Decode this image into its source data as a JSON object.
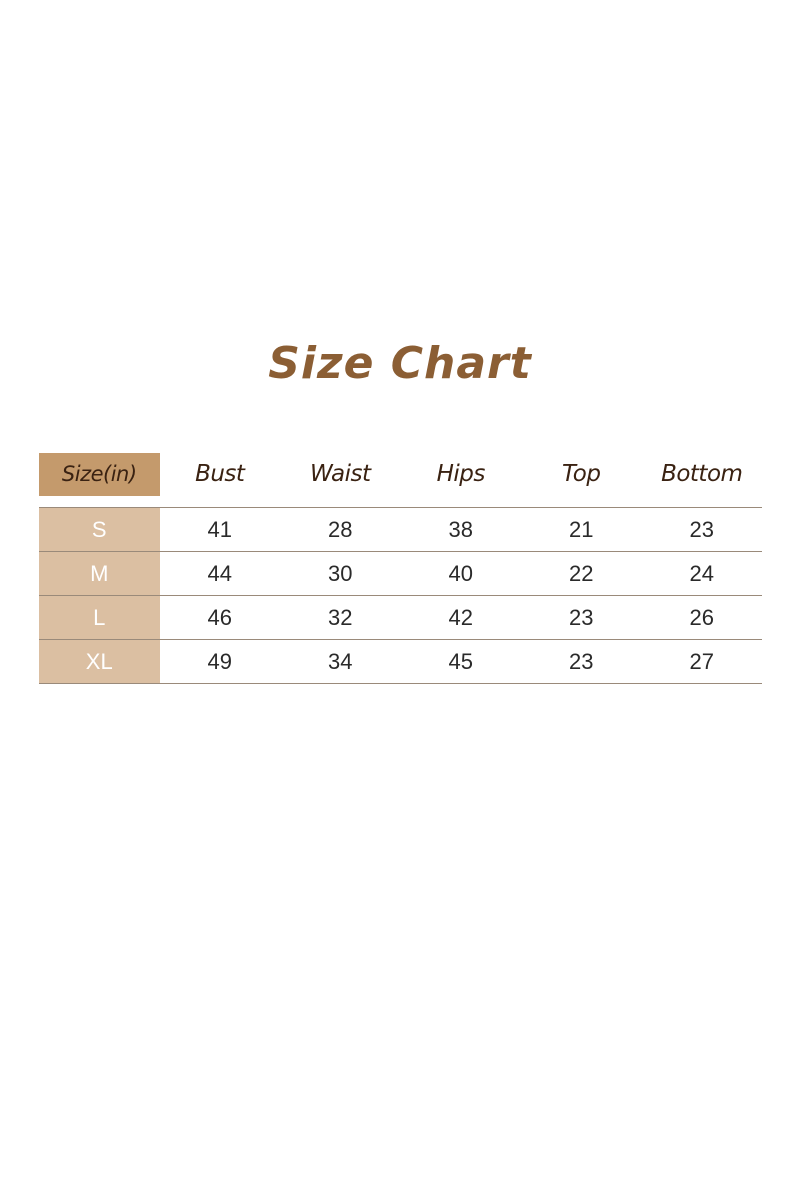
{
  "title": "Size Chart",
  "colors": {
    "title": "#8b5e34",
    "header_cell": "#c49a6c",
    "size_cell": "#dbbfa2",
    "header_text": "#3a2212"
  },
  "table": {
    "headers": [
      "Size(in)",
      "Bust",
      "Waist",
      "Hips",
      "Top",
      "Bottom"
    ],
    "rows": [
      [
        "S",
        "41",
        "28",
        "38",
        "21",
        "23"
      ],
      [
        "M",
        "44",
        "30",
        "40",
        "22",
        "24"
      ],
      [
        "L",
        "46",
        "32",
        "42",
        "23",
        "26"
      ],
      [
        "XL",
        "49",
        "34",
        "45",
        "23",
        "27"
      ]
    ]
  }
}
